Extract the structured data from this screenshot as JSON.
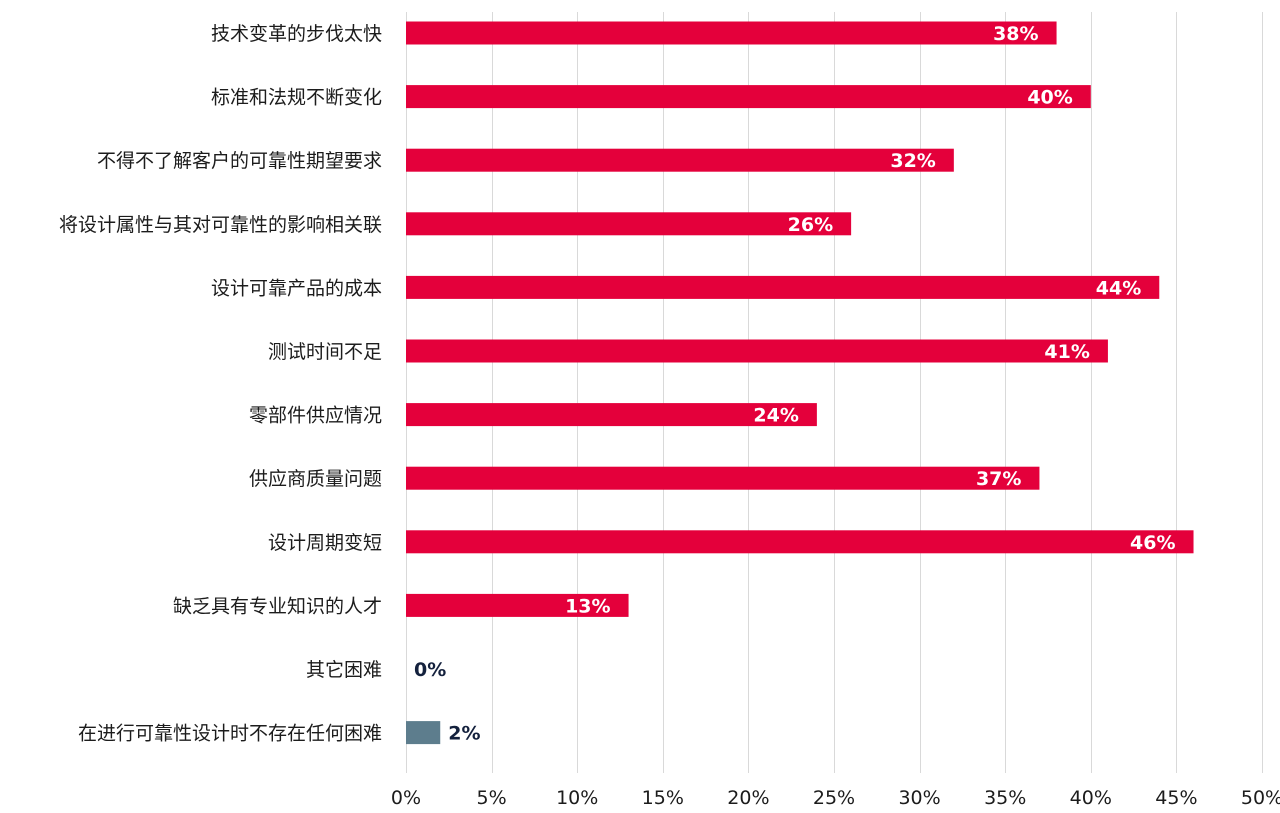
{
  "chart_data": {
    "type": "bar",
    "orientation": "horizontal",
    "title": "",
    "xlabel": "",
    "ylabel": "",
    "categories": [
      "技术变革的步伐太快",
      "标准和法规不断变化",
      "不得不了解客户的可靠性期望要求",
      "将设计属性与其对可靠性的影响相关联",
      "设计可靠产品的成本",
      "测试时间不足",
      "零部件供应情况",
      "供应商质量问题",
      "设计周期变短",
      "缺乏具有专业知识的人才",
      "其它困难",
      "在进行可靠性设计时不存在任何困难"
    ],
    "values": [
      38,
      40,
      32,
      26,
      44,
      41,
      24,
      37,
      46,
      13,
      0,
      2
    ],
    "value_labels": [
      "38%",
      "40%",
      "32%",
      "26%",
      "44%",
      "41%",
      "24%",
      "37%",
      "46%",
      "13%",
      "0%",
      "2%"
    ],
    "bar_colors": [
      "#e4003b",
      "#e4003b",
      "#e4003b",
      "#e4003b",
      "#e4003b",
      "#e4003b",
      "#e4003b",
      "#e4003b",
      "#e4003b",
      "#e4003b",
      "#e4003b",
      "#5d7d8d"
    ],
    "xlim": [
      0,
      50
    ],
    "x_ticks": [
      0,
      5,
      10,
      15,
      20,
      25,
      30,
      35,
      40,
      45,
      50
    ],
    "x_tick_labels": [
      "0%",
      "5%",
      "10%",
      "15%",
      "20%",
      "25%",
      "30%",
      "35%",
      "40%",
      "45%",
      "50%"
    ],
    "grid": "vertical",
    "legend": "none",
    "colors": {
      "bar_primary": "#e4003b",
      "bar_secondary": "#5d7d8d",
      "label_inside": "#ffffff",
      "label_outside": "#14213d",
      "grid": "#d9d9d9",
      "text": "#1c1c1c"
    }
  }
}
